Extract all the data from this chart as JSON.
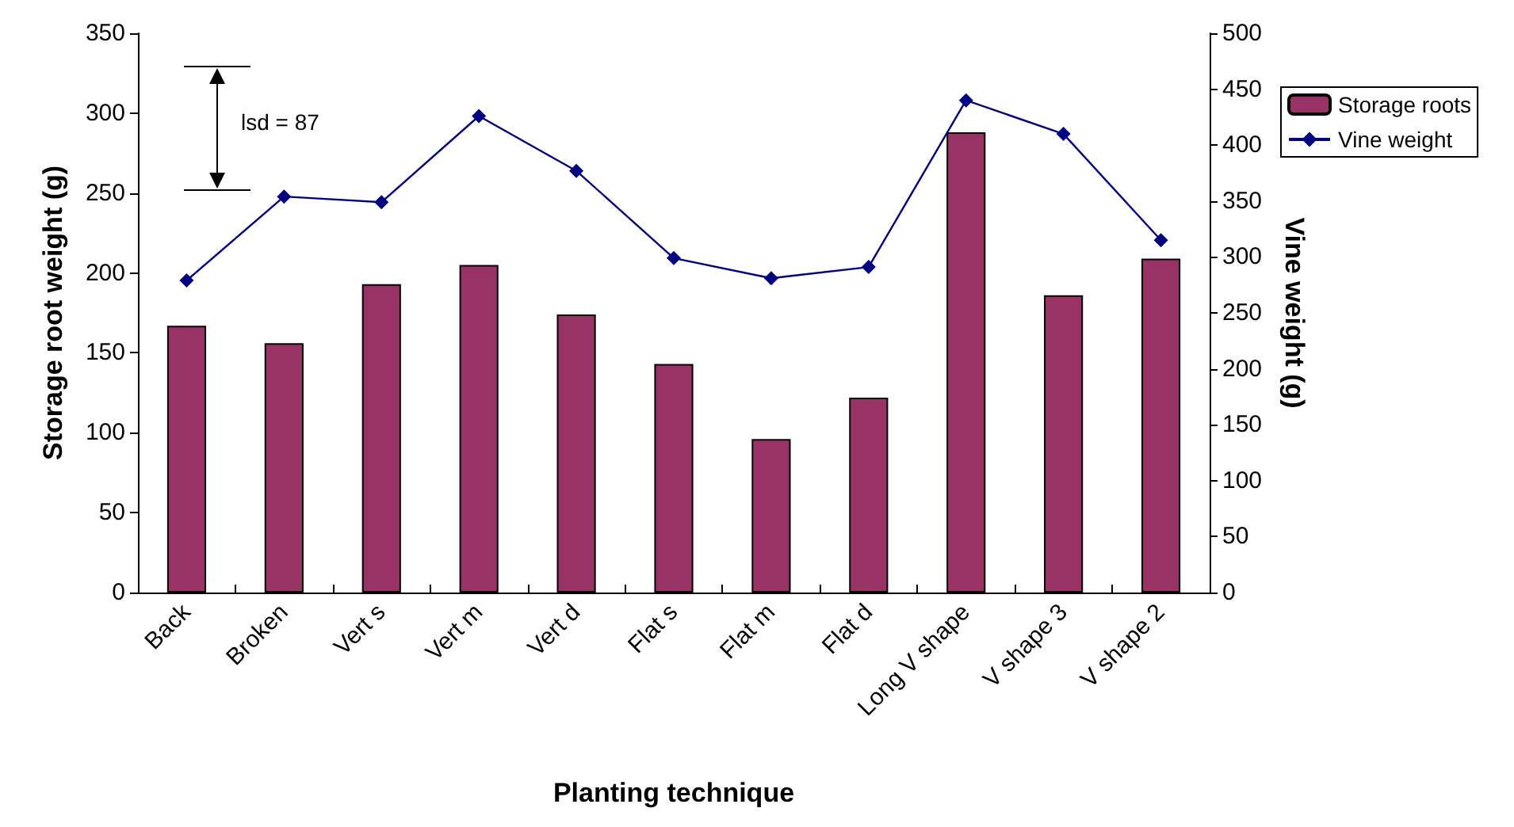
{
  "chart_data": {
    "type": "bar",
    "xlabel": "Planting technique",
    "ylabel": "Storage root weight (g)",
    "y2label": "Vine weight (g)",
    "categories": [
      "Back",
      "Broken",
      "Vert s",
      "Vert m",
      "Vert d",
      "Flat s",
      "Flat m",
      "Flat d",
      "Long V shape",
      "V shape 3",
      "V shape 2"
    ],
    "series": [
      {
        "name": "Storage roots",
        "color": "#993366",
        "values": [
          167,
          156,
          193,
          205,
          174,
          143,
          96,
          122,
          288,
          186,
          209
        ]
      },
      {
        "name": "Vine weight",
        "type": "line",
        "axis": "y2",
        "color": "#000080",
        "marker": "diamond",
        "values": [
          279,
          354,
          349,
          426,
          377,
          299,
          281,
          291,
          440,
          410,
          315
        ]
      }
    ],
    "ylim": [
      0,
      350
    ],
    "yticks": [
      0,
      50,
      100,
      150,
      200,
      250,
      300,
      350
    ],
    "y2lim": [
      0,
      500
    ],
    "y2ticks": [
      0,
      50,
      100,
      150,
      200,
      250,
      300,
      350,
      400,
      450,
      500
    ],
    "annotations": [
      "lsd = 87"
    ],
    "grid": false,
    "legend": "right"
  }
}
